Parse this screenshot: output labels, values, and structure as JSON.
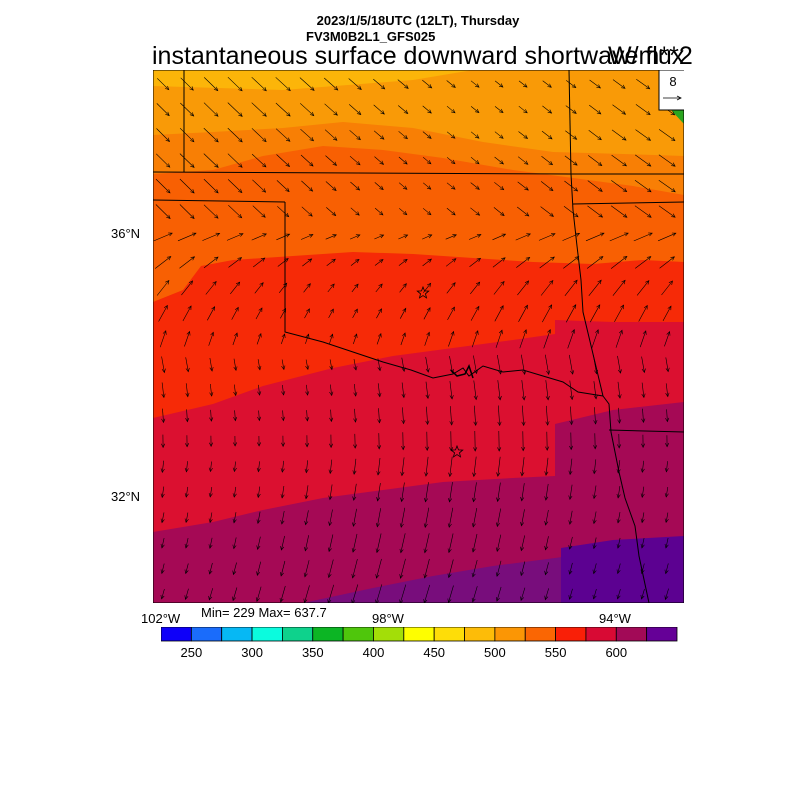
{
  "header": {
    "datetime": "2023/1/5/18UTC (12LT), Thursday",
    "model": "FV3M0B2L1_GFS025",
    "variable": "instantaneous surface downward shortwave flux",
    "units": "W/m**2"
  },
  "map": {
    "lat_labels": [
      "36°N",
      "32°N"
    ],
    "lon_labels": [
      "102°W",
      "98°W",
      "94°W"
    ],
    "vector_reference": "8",
    "field_colors": {
      "f1": "#fcb509",
      "f2": "#f99a07",
      "f3": "#f87f05",
      "f4": "#f86003",
      "f5": "#f62a07",
      "f6": "#db1030",
      "f7": "#a50955",
      "f8": "#780d7c",
      "f9": "#5c0191"
    },
    "markers": [
      "star",
      "star"
    ]
  },
  "stats": {
    "text": "Min= 229 Max= 637.7"
  },
  "colorbar": {
    "colors": [
      "#0e00f9",
      "#1a6cfb",
      "#06b8f4",
      "#0bfbde",
      "#0ed28c",
      "#0cb524",
      "#4fc60c",
      "#a3de08",
      "#fefe00",
      "#fedd08",
      "#fdbc08",
      "#fb9605",
      "#fa6603",
      "#f91f07",
      "#d80a34",
      "#a20a57",
      "#650097"
    ],
    "labels": [
      "250",
      "300",
      "350",
      "400",
      "450",
      "500",
      "550",
      "600"
    ]
  }
}
